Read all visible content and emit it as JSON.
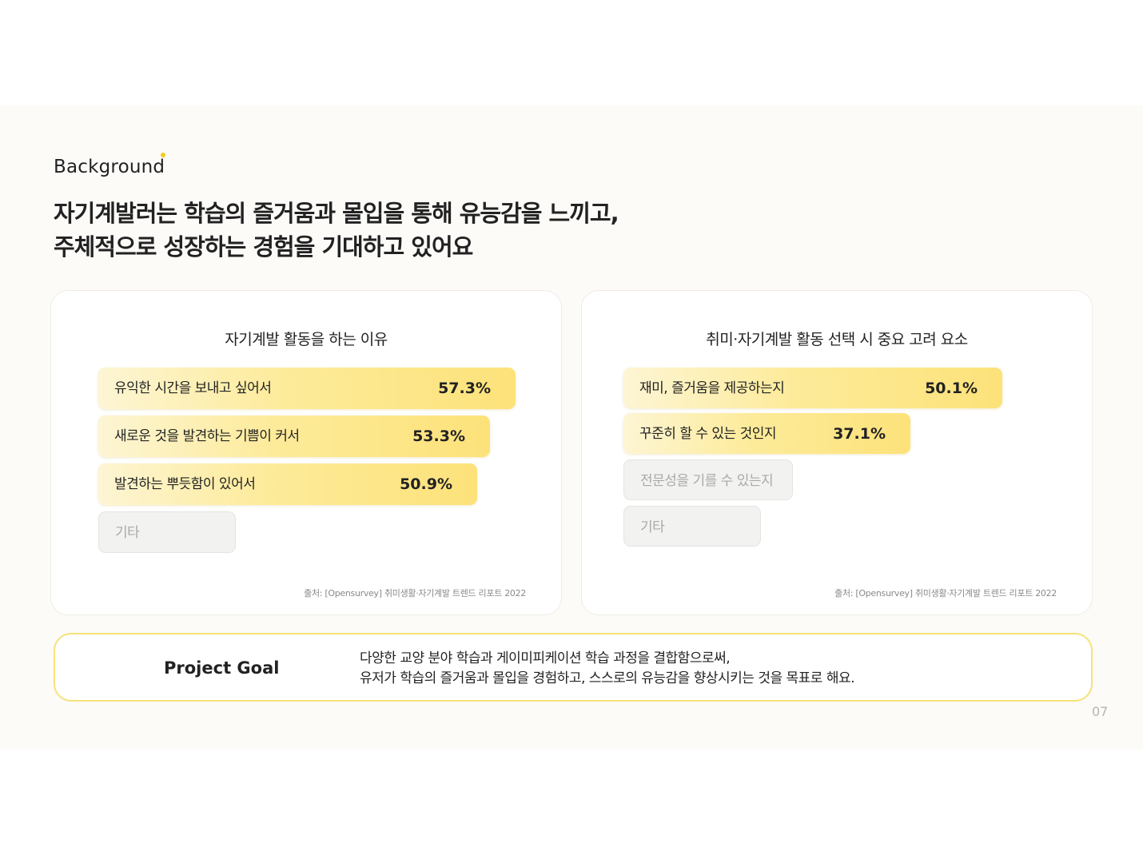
{
  "section_label": "Background",
  "headline": {
    "line1": "자기계발러는 학습의 즐거움과 몰입을 통해 유능감을 느끼고,",
    "line2": "주체적으로 성장하는 경험을 기대하고 있어요"
  },
  "left_card": {
    "title": "자기계발 활동을 하는 이유",
    "items": [
      {
        "label": "유익한 시간을 보내고 싶어서",
        "value": "57.3%"
      },
      {
        "label": "새로운 것을 발견하는 기쁨이 커서",
        "value": "53.3%"
      },
      {
        "label": "발견하는 뿌듯함이 있어서",
        "value": "50.9%"
      },
      {
        "label": "기타",
        "value": ""
      }
    ],
    "source": "출처: [Opensurvey] 취미생활·자기계발 트렌드 리포트 2022"
  },
  "right_card": {
    "title": "취미·자기계발 활동 선택 시 중요 고려 요소",
    "items": [
      {
        "label": "재미, 즐거움을 제공하는지",
        "value": "50.1%"
      },
      {
        "label": "꾸준히 할 수 있는 것인지",
        "value": "37.1%"
      },
      {
        "label": "전문성을 기를 수 있는지",
        "value": ""
      },
      {
        "label": "기타",
        "value": ""
      }
    ],
    "source": "출처: [Opensurvey] 취미생활·자기계발 트렌드 리포트 2022"
  },
  "goal": {
    "label": "Project Goal",
    "line1": "다양한 교양 분야 학습과 게이미피케이션 학습 과정을 결합함으로써,",
    "line2": "유저가 학습의 즐거움과 몰입을 경험하고, 스스로의 유능감을 향상시키는 것을 목표로 해요."
  },
  "page_number": "07",
  "colors": {
    "accent": "#f6c91d",
    "bar_highlight": "#fde27a",
    "goal_border": "#f6e27a",
    "slide_bg": "#fcfbf8"
  }
}
